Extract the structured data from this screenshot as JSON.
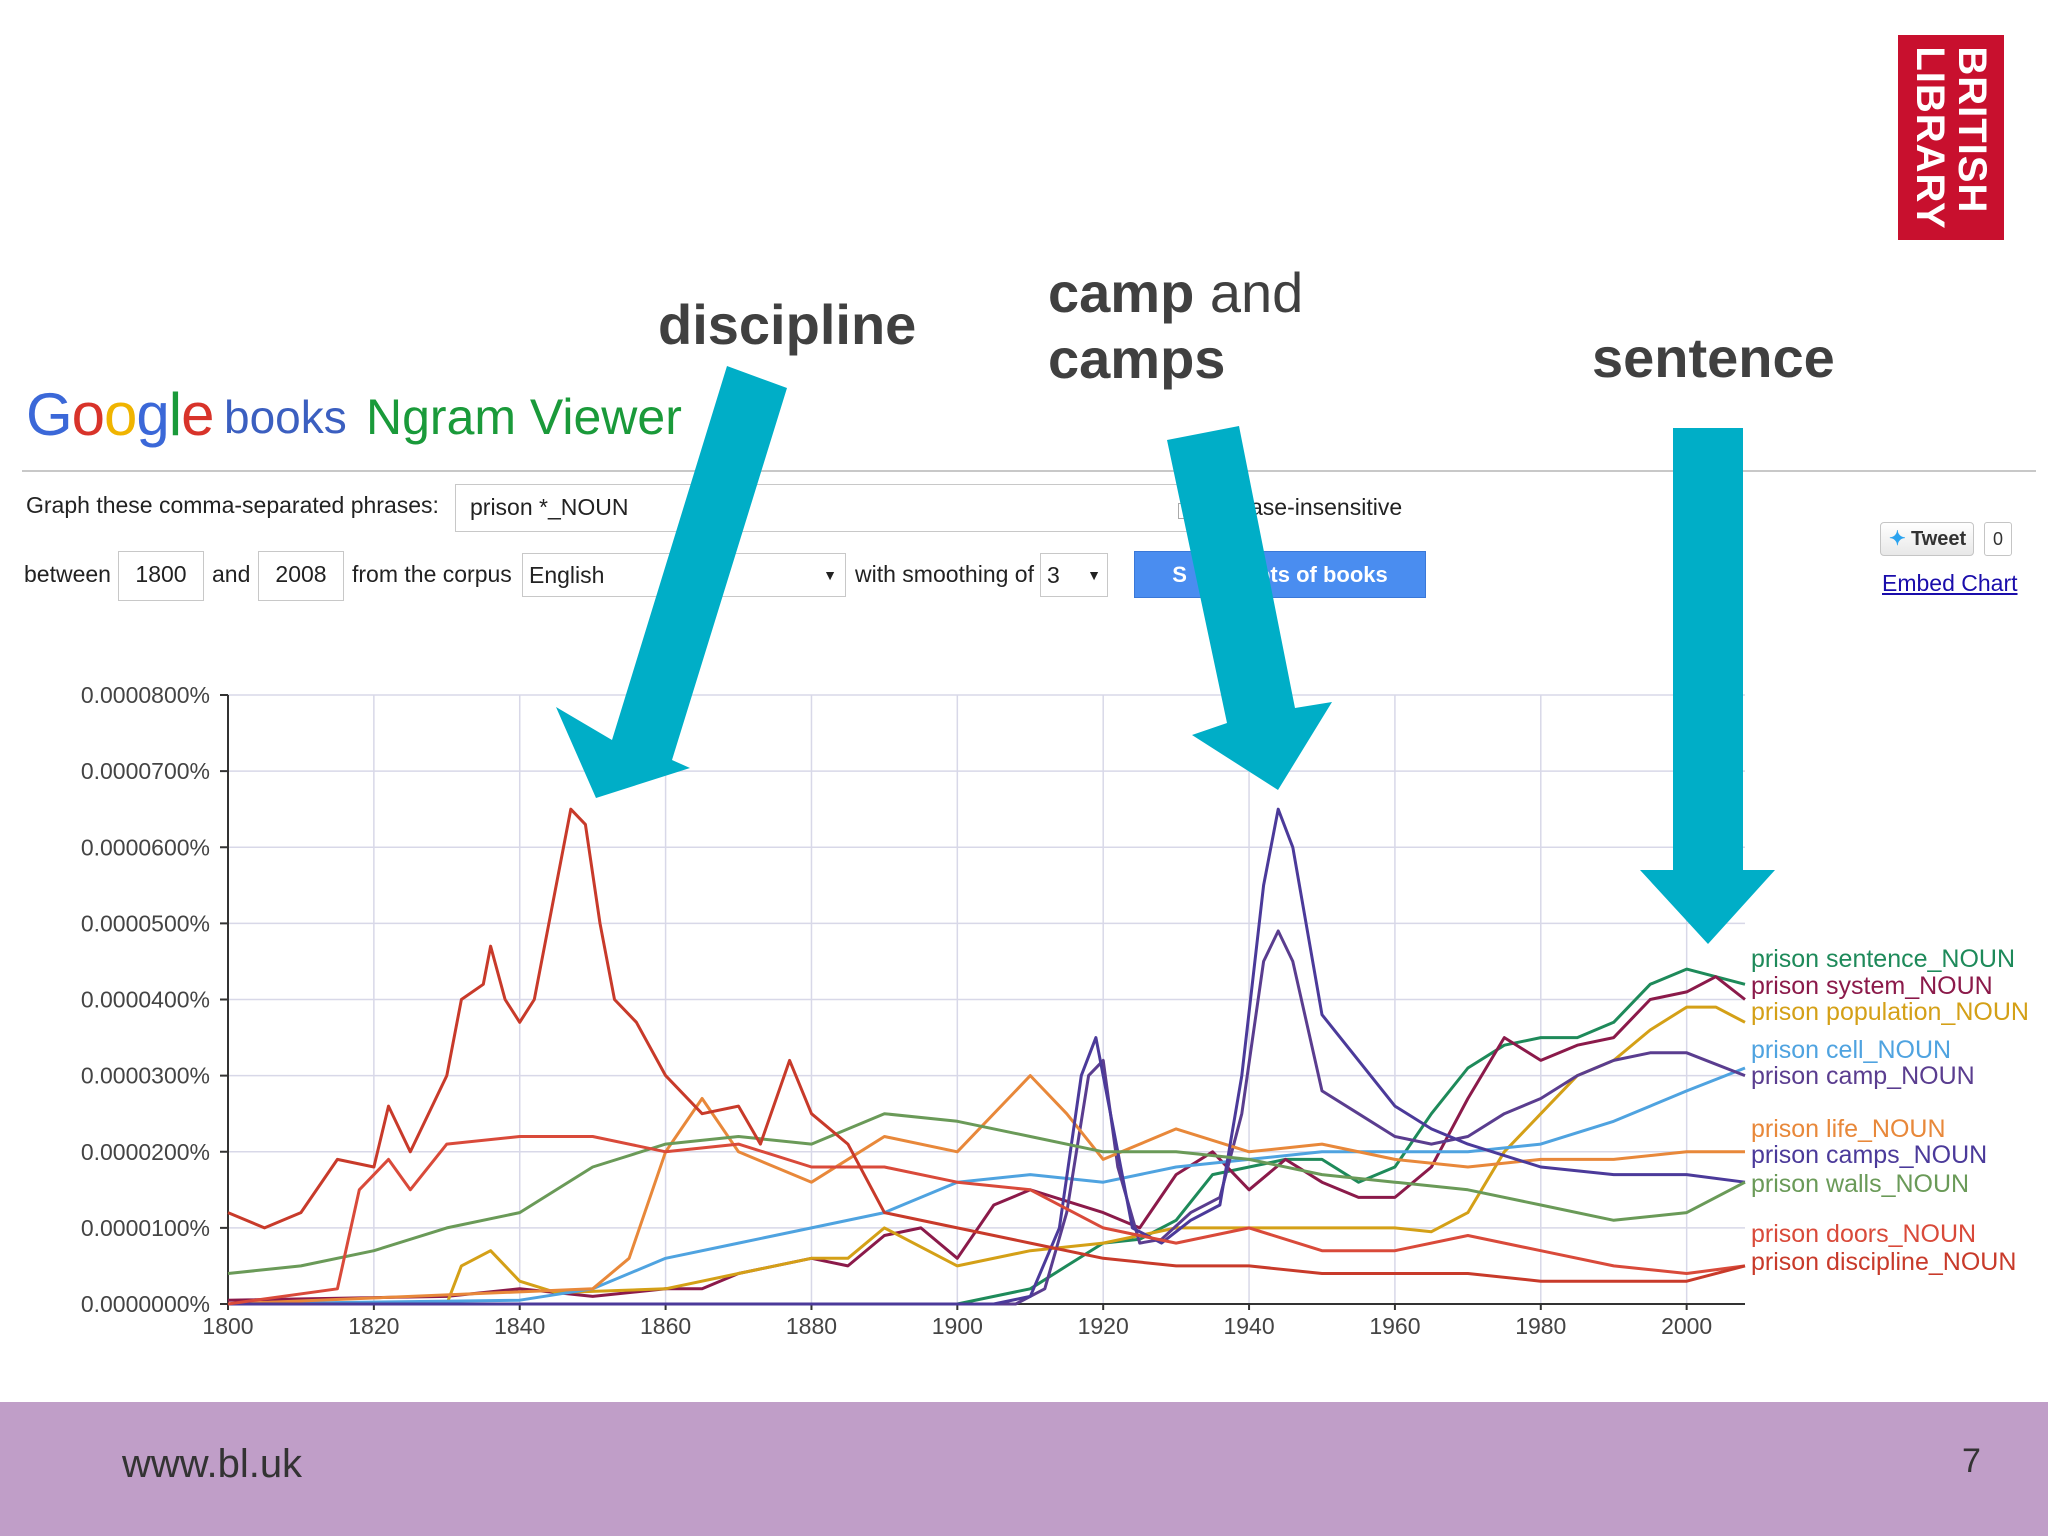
{
  "slide": {
    "footer_url": "www.bl.uk",
    "page_number": "7",
    "logo_line1": "BRITISH",
    "logo_line2": "LIBRARY",
    "colors": {
      "logo_red": "#c8102e",
      "footer_purple": "#c09ec8",
      "arrow_teal": "#00aec7"
    }
  },
  "annotations": {
    "discipline": "discipline",
    "camp_bold": "camp",
    "camp_and": " and",
    "camps": "camps",
    "sentence": "sentence"
  },
  "ngram_ui": {
    "logo_google": "Google",
    "logo_books": "books",
    "title": "Ngram Viewer",
    "phrases_label": "Graph these comma-separated phrases:",
    "phrases_value": "prison *_NOUN",
    "case_label": "ase-insensitive",
    "between_label": "between",
    "start_year": "1800",
    "and_label": "and",
    "end_year": "2008",
    "corpus_label": "from the corpus",
    "corpus_value": "English",
    "smoothing_label": "with smoothing of",
    "smoothing_value": "3",
    "search_button_left": "S",
    "search_button_right": "ots of books",
    "tweet_label": "Tweet",
    "tweet_count": "0",
    "embed_label": "Embed Chart"
  },
  "chart_data": {
    "type": "line",
    "title": "",
    "xlabel": "",
    "ylabel": "",
    "xlim": [
      1800,
      2008
    ],
    "ylim": [
      0,
      8e-05
    ],
    "x_ticks": [
      1800,
      1820,
      1840,
      1860,
      1880,
      1900,
      1920,
      1940,
      1960,
      1980,
      2000
    ],
    "y_ticks": [
      "0.0000000%",
      "0.0000100%",
      "0.0000200%",
      "0.0000300%",
      "0.0000400%",
      "0.0000500%",
      "0.0000600%",
      "0.0000700%",
      "0.0000800%"
    ],
    "y_tick_values": [
      0,
      1e-05,
      2e-05,
      3e-05,
      4e-05,
      5e-05,
      6e-05,
      7e-05,
      8e-05
    ],
    "grid": true,
    "legend": "right",
    "series": [
      {
        "name": "prison sentence_NOUN",
        "color": "#1e8a5a",
        "points": [
          [
            1800,
            0
          ],
          [
            1900,
            0
          ],
          [
            1910,
            2e-06
          ],
          [
            1915,
            5e-06
          ],
          [
            1920,
            8e-06
          ],
          [
            1925,
            8.5e-06
          ],
          [
            1930,
            1.1e-05
          ],
          [
            1935,
            1.7e-05
          ],
          [
            1940,
            1.8e-05
          ],
          [
            1945,
            1.9e-05
          ],
          [
            1950,
            1.9e-05
          ],
          [
            1955,
            1.6e-05
          ],
          [
            1960,
            1.8e-05
          ],
          [
            1965,
            2.5e-05
          ],
          [
            1970,
            3.1e-05
          ],
          [
            1975,
            3.4e-05
          ],
          [
            1980,
            3.5e-05
          ],
          [
            1985,
            3.5e-05
          ],
          [
            1990,
            3.7e-05
          ],
          [
            1995,
            4.2e-05
          ],
          [
            2000,
            4.4e-05
          ],
          [
            2004,
            4.3e-05
          ],
          [
            2008,
            4.2e-05
          ]
        ]
      },
      {
        "name": "prison system_NOUN",
        "color": "#8b1a4a",
        "points": [
          [
            1800,
            5e-07
          ],
          [
            1830,
            1e-06
          ],
          [
            1840,
            2e-06
          ],
          [
            1850,
            1e-06
          ],
          [
            1860,
            2e-06
          ],
          [
            1865,
            2e-06
          ],
          [
            1870,
            4e-06
          ],
          [
            1880,
            6e-06
          ],
          [
            1885,
            5e-06
          ],
          [
            1890,
            9e-06
          ],
          [
            1895,
            1e-05
          ],
          [
            1900,
            6e-06
          ],
          [
            1905,
            1.3e-05
          ],
          [
            1910,
            1.5e-05
          ],
          [
            1920,
            1.2e-05
          ],
          [
            1925,
            1e-05
          ],
          [
            1930,
            1.7e-05
          ],
          [
            1935,
            2e-05
          ],
          [
            1940,
            1.5e-05
          ],
          [
            1945,
            1.9e-05
          ],
          [
            1950,
            1.6e-05
          ],
          [
            1955,
            1.4e-05
          ],
          [
            1960,
            1.4e-05
          ],
          [
            1965,
            1.8e-05
          ],
          [
            1970,
            2.7e-05
          ],
          [
            1975,
            3.5e-05
          ],
          [
            1980,
            3.2e-05
          ],
          [
            1985,
            3.4e-05
          ],
          [
            1990,
            3.5e-05
          ],
          [
            1995,
            4e-05
          ],
          [
            2000,
            4.1e-05
          ],
          [
            2004,
            4.3e-05
          ],
          [
            2008,
            4e-05
          ]
        ]
      },
      {
        "name": "prison population_NOUN",
        "color": "#d4a017",
        "points": [
          [
            1800,
            0
          ],
          [
            1830,
            0
          ],
          [
            1832,
            5e-06
          ],
          [
            1836,
            7e-06
          ],
          [
            1840,
            3e-06
          ],
          [
            1845,
            1.5e-06
          ],
          [
            1860,
            2e-06
          ],
          [
            1870,
            4e-06
          ],
          [
            1880,
            6e-06
          ],
          [
            1885,
            6e-06
          ],
          [
            1890,
            1e-05
          ],
          [
            1900,
            5e-06
          ],
          [
            1910,
            7e-06
          ],
          [
            1920,
            8e-06
          ],
          [
            1930,
            1e-05
          ],
          [
            1940,
            1e-05
          ],
          [
            1950,
            1e-05
          ],
          [
            1960,
            1e-05
          ],
          [
            1965,
            9.5e-06
          ],
          [
            1970,
            1.2e-05
          ],
          [
            1975,
            2e-05
          ],
          [
            1980,
            2.5e-05
          ],
          [
            1985,
            3e-05
          ],
          [
            1990,
            3.2e-05
          ],
          [
            1995,
            3.6e-05
          ],
          [
            2000,
            3.9e-05
          ],
          [
            2004,
            3.9e-05
          ],
          [
            2008,
            3.7e-05
          ]
        ]
      },
      {
        "name": "prison cell_NOUN",
        "color": "#4fa3e0",
        "points": [
          [
            1800,
            0
          ],
          [
            1840,
            5e-07
          ],
          [
            1850,
            2e-06
          ],
          [
            1860,
            6e-06
          ],
          [
            1870,
            8e-06
          ],
          [
            1880,
            1e-05
          ],
          [
            1890,
            1.2e-05
          ],
          [
            1900,
            1.6e-05
          ],
          [
            1910,
            1.7e-05
          ],
          [
            1920,
            1.6e-05
          ],
          [
            1930,
            1.8e-05
          ],
          [
            1940,
            1.9e-05
          ],
          [
            1950,
            2e-05
          ],
          [
            1960,
            2e-05
          ],
          [
            1970,
            2e-05
          ],
          [
            1980,
            2.1e-05
          ],
          [
            1990,
            2.4e-05
          ],
          [
            2000,
            2.8e-05
          ],
          [
            2008,
            3.1e-05
          ]
        ]
      },
      {
        "name": "prison camp_NOUN",
        "color": "#5a3d8f",
        "points": [
          [
            1800,
            0
          ],
          [
            1908,
            0
          ],
          [
            1912,
            2e-06
          ],
          [
            1915,
            1.2e-05
          ],
          [
            1918,
            3e-05
          ],
          [
            1920,
            3.2e-05
          ],
          [
            1922,
            1.8e-05
          ],
          [
            1925,
            8e-06
          ],
          [
            1928,
            8.5e-06
          ],
          [
            1932,
            1.2e-05
          ],
          [
            1936,
            1.4e-05
          ],
          [
            1939,
            2.5e-05
          ],
          [
            1942,
            4.5e-05
          ],
          [
            1944,
            4.9e-05
          ],
          [
            1946,
            4.5e-05
          ],
          [
            1950,
            2.8e-05
          ],
          [
            1955,
            2.5e-05
          ],
          [
            1960,
            2.2e-05
          ],
          [
            1965,
            2.1e-05
          ],
          [
            1970,
            2.2e-05
          ],
          [
            1975,
            2.5e-05
          ],
          [
            1980,
            2.7e-05
          ],
          [
            1985,
            3e-05
          ],
          [
            1990,
            3.2e-05
          ],
          [
            1995,
            3.3e-05
          ],
          [
            2000,
            3.3e-05
          ],
          [
            2008,
            3e-05
          ]
        ]
      },
      {
        "name": "prison life_NOUN",
        "color": "#e8883a",
        "points": [
          [
            1800,
            0
          ],
          [
            1850,
            2e-06
          ],
          [
            1855,
            6e-06
          ],
          [
            1860,
            2e-05
          ],
          [
            1865,
            2.7e-05
          ],
          [
            1870,
            2e-05
          ],
          [
            1880,
            1.6e-05
          ],
          [
            1890,
            2.2e-05
          ],
          [
            1900,
            2e-05
          ],
          [
            1910,
            3e-05
          ],
          [
            1915,
            2.5e-05
          ],
          [
            1920,
            1.9e-05
          ],
          [
            1930,
            2.3e-05
          ],
          [
            1940,
            2e-05
          ],
          [
            1950,
            2.1e-05
          ],
          [
            1960,
            1.9e-05
          ],
          [
            1970,
            1.8e-05
          ],
          [
            1980,
            1.9e-05
          ],
          [
            1990,
            1.9e-05
          ],
          [
            2000,
            2e-05
          ],
          [
            2008,
            2e-05
          ]
        ]
      },
      {
        "name": "prison camps_NOUN",
        "color": "#4b3a9a",
        "points": [
          [
            1800,
            0
          ],
          [
            1905,
            0
          ],
          [
            1910,
            1e-06
          ],
          [
            1914,
            1e-05
          ],
          [
            1917,
            3e-05
          ],
          [
            1919,
            3.5e-05
          ],
          [
            1921,
            2.5e-05
          ],
          [
            1924,
            1e-05
          ],
          [
            1928,
            8e-06
          ],
          [
            1932,
            1.1e-05
          ],
          [
            1936,
            1.3e-05
          ],
          [
            1939,
            3e-05
          ],
          [
            1942,
            5.5e-05
          ],
          [
            1944,
            6.5e-05
          ],
          [
            1946,
            6e-05
          ],
          [
            1950,
            3.8e-05
          ],
          [
            1955,
            3.2e-05
          ],
          [
            1960,
            2.6e-05
          ],
          [
            1965,
            2.3e-05
          ],
          [
            1970,
            2.1e-05
          ],
          [
            1980,
            1.8e-05
          ],
          [
            1990,
            1.7e-05
          ],
          [
            2000,
            1.7e-05
          ],
          [
            2008,
            1.6e-05
          ]
        ]
      },
      {
        "name": "prison walls_NOUN",
        "color": "#6a9a58",
        "points": [
          [
            1800,
            4e-06
          ],
          [
            1810,
            5e-06
          ],
          [
            1820,
            7e-06
          ],
          [
            1830,
            1e-05
          ],
          [
            1840,
            1.2e-05
          ],
          [
            1850,
            1.8e-05
          ],
          [
            1860,
            2.1e-05
          ],
          [
            1870,
            2.2e-05
          ],
          [
            1880,
            2.1e-05
          ],
          [
            1890,
            2.5e-05
          ],
          [
            1900,
            2.4e-05
          ],
          [
            1910,
            2.2e-05
          ],
          [
            1920,
            2e-05
          ],
          [
            1930,
            2e-05
          ],
          [
            1940,
            1.9e-05
          ],
          [
            1950,
            1.7e-05
          ],
          [
            1960,
            1.6e-05
          ],
          [
            1970,
            1.5e-05
          ],
          [
            1980,
            1.3e-05
          ],
          [
            1990,
            1.1e-05
          ],
          [
            2000,
            1.2e-05
          ],
          [
            2008,
            1.6e-05
          ]
        ]
      },
      {
        "name": "prison doors_NOUN",
        "color": "#d94a3a",
        "points": [
          [
            1800,
            0
          ],
          [
            1815,
            2e-06
          ],
          [
            1818,
            1.5e-05
          ],
          [
            1822,
            1.9e-05
          ],
          [
            1825,
            1.5e-05
          ],
          [
            1830,
            2.1e-05
          ],
          [
            1840,
            2.2e-05
          ],
          [
            1850,
            2.2e-05
          ],
          [
            1860,
            2e-05
          ],
          [
            1870,
            2.1e-05
          ],
          [
            1880,
            1.8e-05
          ],
          [
            1890,
            1.8e-05
          ],
          [
            1900,
            1.6e-05
          ],
          [
            1910,
            1.5e-05
          ],
          [
            1920,
            1e-05
          ],
          [
            1930,
            8e-06
          ],
          [
            1940,
            1e-05
          ],
          [
            1950,
            7e-06
          ],
          [
            1960,
            7e-06
          ],
          [
            1970,
            9e-06
          ],
          [
            1980,
            7e-06
          ],
          [
            1990,
            5e-06
          ],
          [
            2000,
            4e-06
          ],
          [
            2008,
            5e-06
          ]
        ]
      },
      {
        "name": "prison discipline_NOUN",
        "color": "#c83a2a",
        "points": [
          [
            1800,
            1.2e-05
          ],
          [
            1805,
            1e-05
          ],
          [
            1810,
            1.2e-05
          ],
          [
            1815,
            1.9e-05
          ],
          [
            1820,
            1.8e-05
          ],
          [
            1822,
            2.6e-05
          ],
          [
            1825,
            2e-05
          ],
          [
            1830,
            3e-05
          ],
          [
            1832,
            4e-05
          ],
          [
            1835,
            4.2e-05
          ],
          [
            1836,
            4.7e-05
          ],
          [
            1838,
            4e-05
          ],
          [
            1840,
            3.7e-05
          ],
          [
            1842,
            4e-05
          ],
          [
            1845,
            5.5e-05
          ],
          [
            1847,
            6.5e-05
          ],
          [
            1849,
            6.3e-05
          ],
          [
            1851,
            5e-05
          ],
          [
            1853,
            4e-05
          ],
          [
            1856,
            3.7e-05
          ],
          [
            1860,
            3e-05
          ],
          [
            1865,
            2.5e-05
          ],
          [
            1870,
            2.6e-05
          ],
          [
            1873,
            2.1e-05
          ],
          [
            1877,
            3.2e-05
          ],
          [
            1880,
            2.5e-05
          ],
          [
            1885,
            2.1e-05
          ],
          [
            1890,
            1.2e-05
          ],
          [
            1900,
            1e-05
          ],
          [
            1910,
            8e-06
          ],
          [
            1920,
            6e-06
          ],
          [
            1930,
            5e-06
          ],
          [
            1940,
            5e-06
          ],
          [
            1950,
            4e-06
          ],
          [
            1960,
            4e-06
          ],
          [
            1970,
            4e-06
          ],
          [
            1980,
            3e-06
          ],
          [
            1990,
            3e-06
          ],
          [
            2000,
            3e-06
          ],
          [
            2008,
            5e-06
          ]
        ]
      }
    ]
  }
}
